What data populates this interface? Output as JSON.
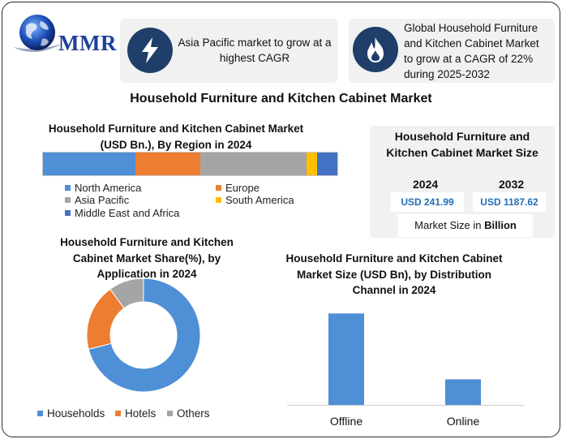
{
  "header": {
    "logo_text": "MMR",
    "cards": [
      {
        "icon": "lightning-icon",
        "text_line1": "Asia Pacific market to grow at a",
        "text_line2": "highest CAGR"
      },
      {
        "icon": "flame-icon",
        "text_line1": "Global Household Furniture",
        "text_line2": "and Kitchen Cabinet Market",
        "text_line3": "to grow at a CAGR of 22%",
        "text_line4": "during 2025-2032"
      }
    ]
  },
  "main_title": "Household Furniture and Kitchen Cabinet Market",
  "region_chart": {
    "title_line1": "Household Furniture and Kitchen Cabinet Market",
    "title_line2": "(USD Bn.), By Region in 2024"
  },
  "size_box": {
    "title_line1": "Household Furniture and",
    "title_line2": "Kitchen Cabinet Market Size",
    "year1": "2024",
    "year2": "2032",
    "value1": "USD 241.99",
    "value2": "USD 1187.62",
    "foot_prefix": "Market Size in ",
    "foot_bold": "Billion"
  },
  "application_chart": {
    "title_line1": "Household Furniture and Kitchen",
    "title_line2": "Cabinet Market Share(%), by",
    "title_line3": "Application in 2024"
  },
  "channel_chart": {
    "title_line1": "Household Furniture and Kitchen Cabinet",
    "title_line2": "Market Size (USD Bn), by Distribution",
    "title_line3": "Channel in 2024"
  },
  "chart_data": [
    {
      "type": "bar",
      "orientation": "horizontal-stacked",
      "title": "Household Furniture and Kitchen Cabinet Market (USD Bn.), By Region in 2024",
      "categories": [
        "North America",
        "Europe",
        "Asia Pacific",
        "South America",
        "Middle East and Africa"
      ],
      "values": [
        31.5,
        22,
        36,
        3.5,
        7
      ],
      "colors": [
        "#4e8fd6",
        "#ed7d31",
        "#a5a5a5",
        "#ffc000",
        "#4472c4"
      ],
      "legend": "bottom"
    },
    {
      "type": "pie",
      "variant": "donut",
      "title": "Household Furniture and Kitchen Cabinet Market Share(%), by Application in 2024",
      "categories": [
        "Households",
        "Hotels",
        "Others"
      ],
      "values": [
        71,
        19,
        10
      ],
      "colors": [
        "#4e8fd6",
        "#ed7d31",
        "#a5a5a5"
      ],
      "legend": "bottom"
    },
    {
      "type": "bar",
      "title": "Household Furniture and Kitchen Cabinet Market Size (USD Bn), by Distribution Channel in 2024",
      "categories": [
        "Offline",
        "Online"
      ],
      "values": [
        100,
        28
      ],
      "ylim": [
        0,
        110
      ],
      "color": "#4e8fd6",
      "xlabel": "",
      "ylabel": ""
    }
  ]
}
